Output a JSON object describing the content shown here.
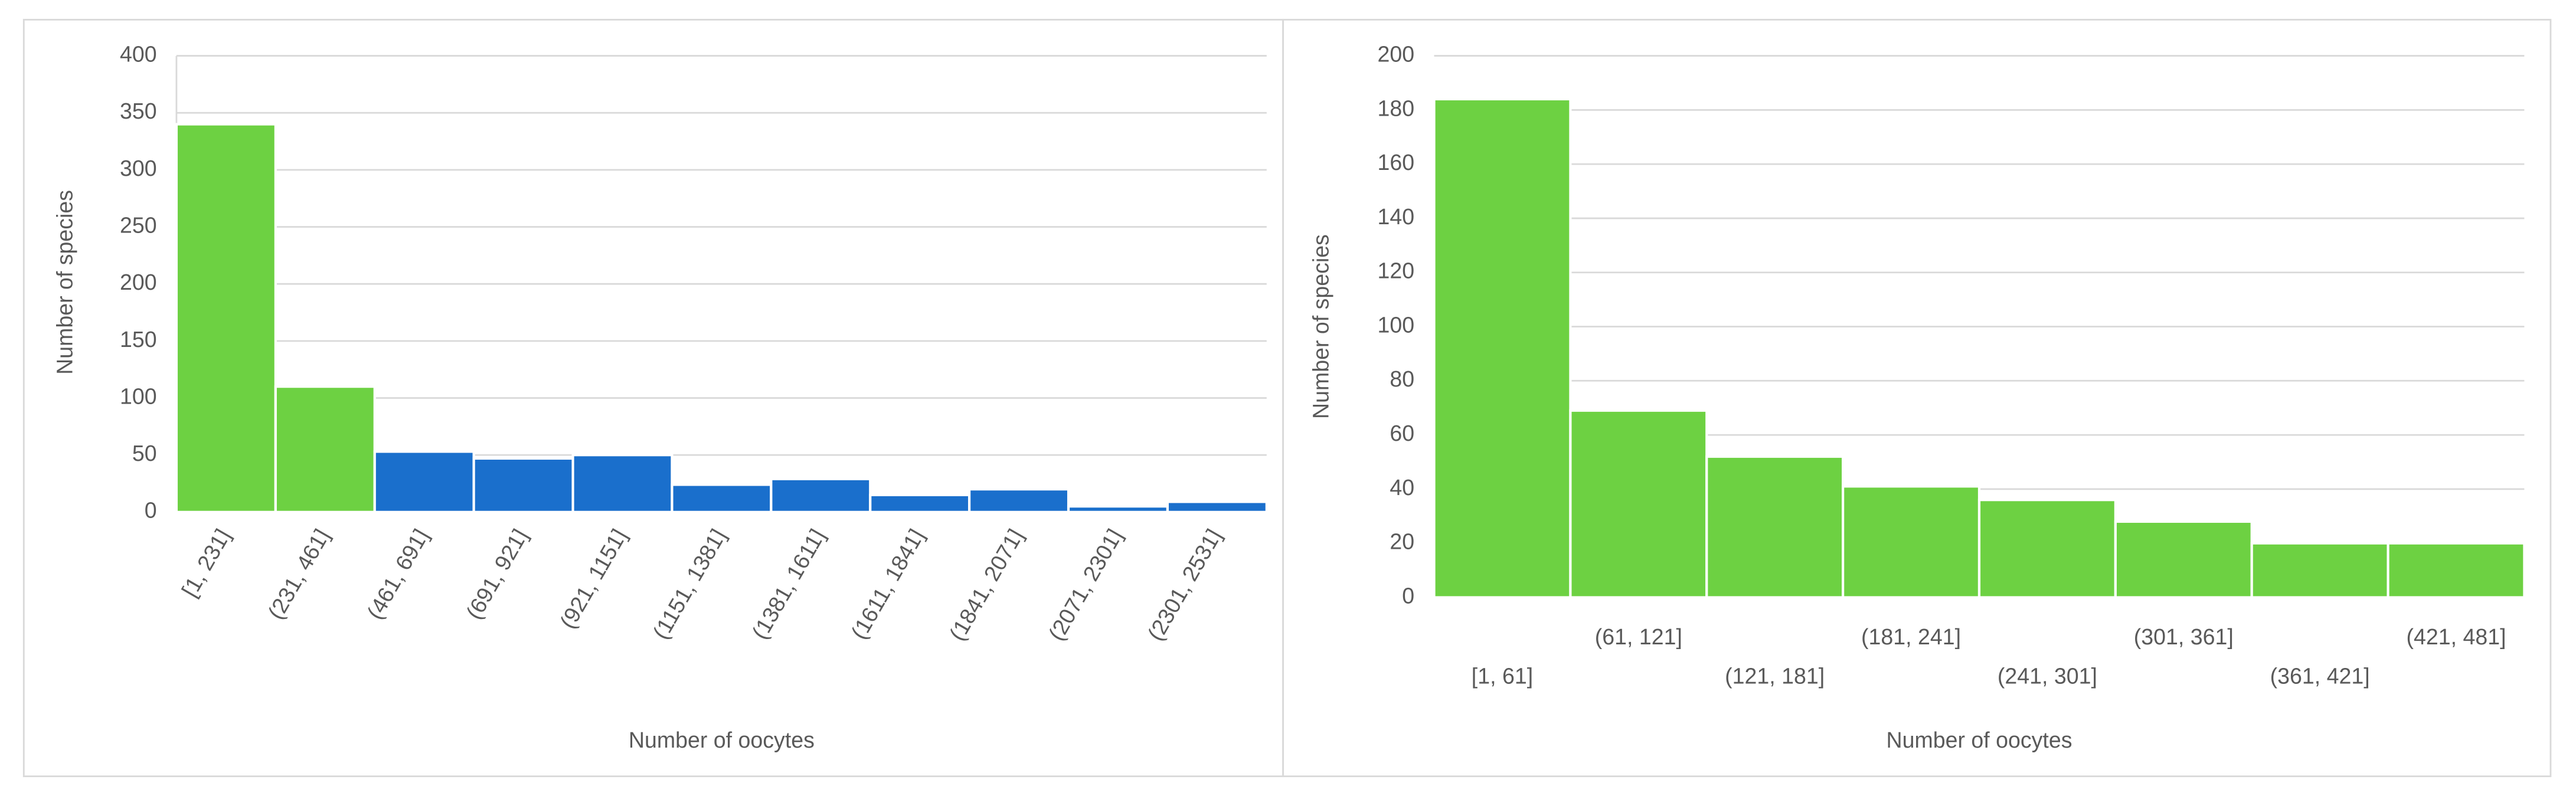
{
  "chart_data": [
    {
      "type": "bar",
      "ylabel": "Number of species",
      "xlabel": "Number of oocytes",
      "categories": [
        "[1, 231]",
        "(231, 461]",
        "(461, 691]",
        "(691, 921]",
        "(921, 1151]",
        "(1151, 1381]",
        "(1381, 1611]",
        "(1611, 1841]",
        "(1841, 2071]",
        "(2071, 2301]",
        "(2301, 2531]"
      ],
      "values": [
        340,
        110,
        53,
        47,
        50,
        24,
        29,
        15,
        20,
        5,
        9
      ],
      "colors": [
        "#6dd142",
        "#6dd142",
        "#1a6fcc",
        "#1a6fcc",
        "#1a6fcc",
        "#1a6fcc",
        "#1a6fcc",
        "#1a6fcc",
        "#1a6fcc",
        "#1a6fcc",
        "#1a6fcc"
      ],
      "ylim": [
        0,
        400
      ],
      "yticks": [
        0,
        50,
        100,
        150,
        200,
        250,
        300,
        350,
        400
      ],
      "grid": true
    },
    {
      "type": "bar",
      "ylabel": "Number of species",
      "xlabel": "Number of oocytes",
      "categories": [
        "[1, 61]",
        "(61, 121]",
        "(121, 181]",
        "(181, 241]",
        "(241, 301]",
        "(301, 361]",
        "(361, 421]",
        "(421, 481]"
      ],
      "values": [
        184,
        69,
        52,
        41,
        36,
        28,
        20,
        20
      ],
      "colors": [
        "#6dd142",
        "#6dd142",
        "#6dd142",
        "#6dd142",
        "#6dd142",
        "#6dd142",
        "#6dd142",
        "#6dd142"
      ],
      "ylim": [
        0,
        200
      ],
      "yticks": [
        0,
        20,
        40,
        60,
        80,
        100,
        120,
        140,
        160,
        180,
        200
      ],
      "grid": true
    }
  ]
}
